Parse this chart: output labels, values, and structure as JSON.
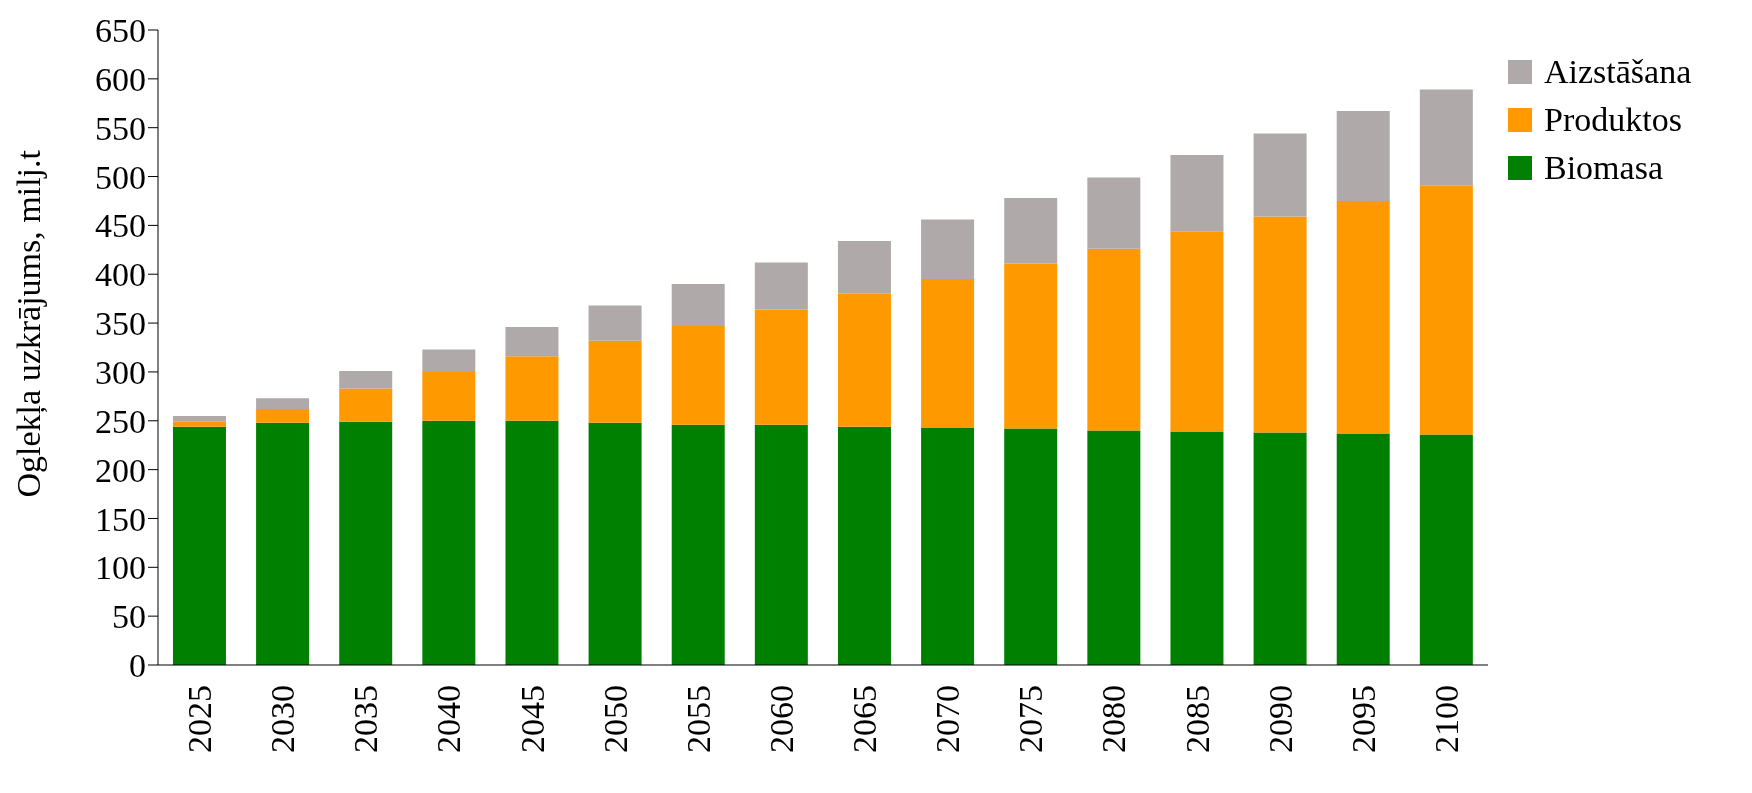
{
  "chart_data": {
    "type": "bar",
    "ylabel": "Oglekļa uzkrājums, milj.t",
    "stacked": true,
    "legend": "top right",
    "categories": [
      "2025",
      "2030",
      "2035",
      "2040",
      "2045",
      "2050",
      "2055",
      "2060",
      "2065",
      "2070",
      "2075",
      "2080",
      "2085",
      "2090",
      "2095",
      "2100"
    ],
    "series": [
      {
        "name": "Biomasa",
        "color": "#008000",
        "values": [
          244,
          248,
          249,
          250,
          250,
          248,
          246,
          246,
          244,
          243,
          242,
          240,
          239,
          238,
          237,
          236
        ]
      },
      {
        "name": "Produktos",
        "color": "#ff9900",
        "values": [
          5,
          14,
          34,
          50,
          66,
          84,
          101,
          118,
          136,
          152,
          169,
          186,
          205,
          221,
          238,
          255
        ]
      },
      {
        "name": "Aizstāšana",
        "color": "#afaaa9",
        "values": [
          6,
          11,
          18,
          23,
          30,
          36,
          43,
          48,
          54,
          61,
          67,
          73,
          78,
          85,
          92,
          98
        ]
      }
    ],
    "ylim": [
      0,
      650
    ],
    "yticks": [
      0,
      50,
      100,
      150,
      200,
      250,
      300,
      350,
      400,
      450,
      500,
      550,
      600,
      650
    ],
    "grid": false
  }
}
